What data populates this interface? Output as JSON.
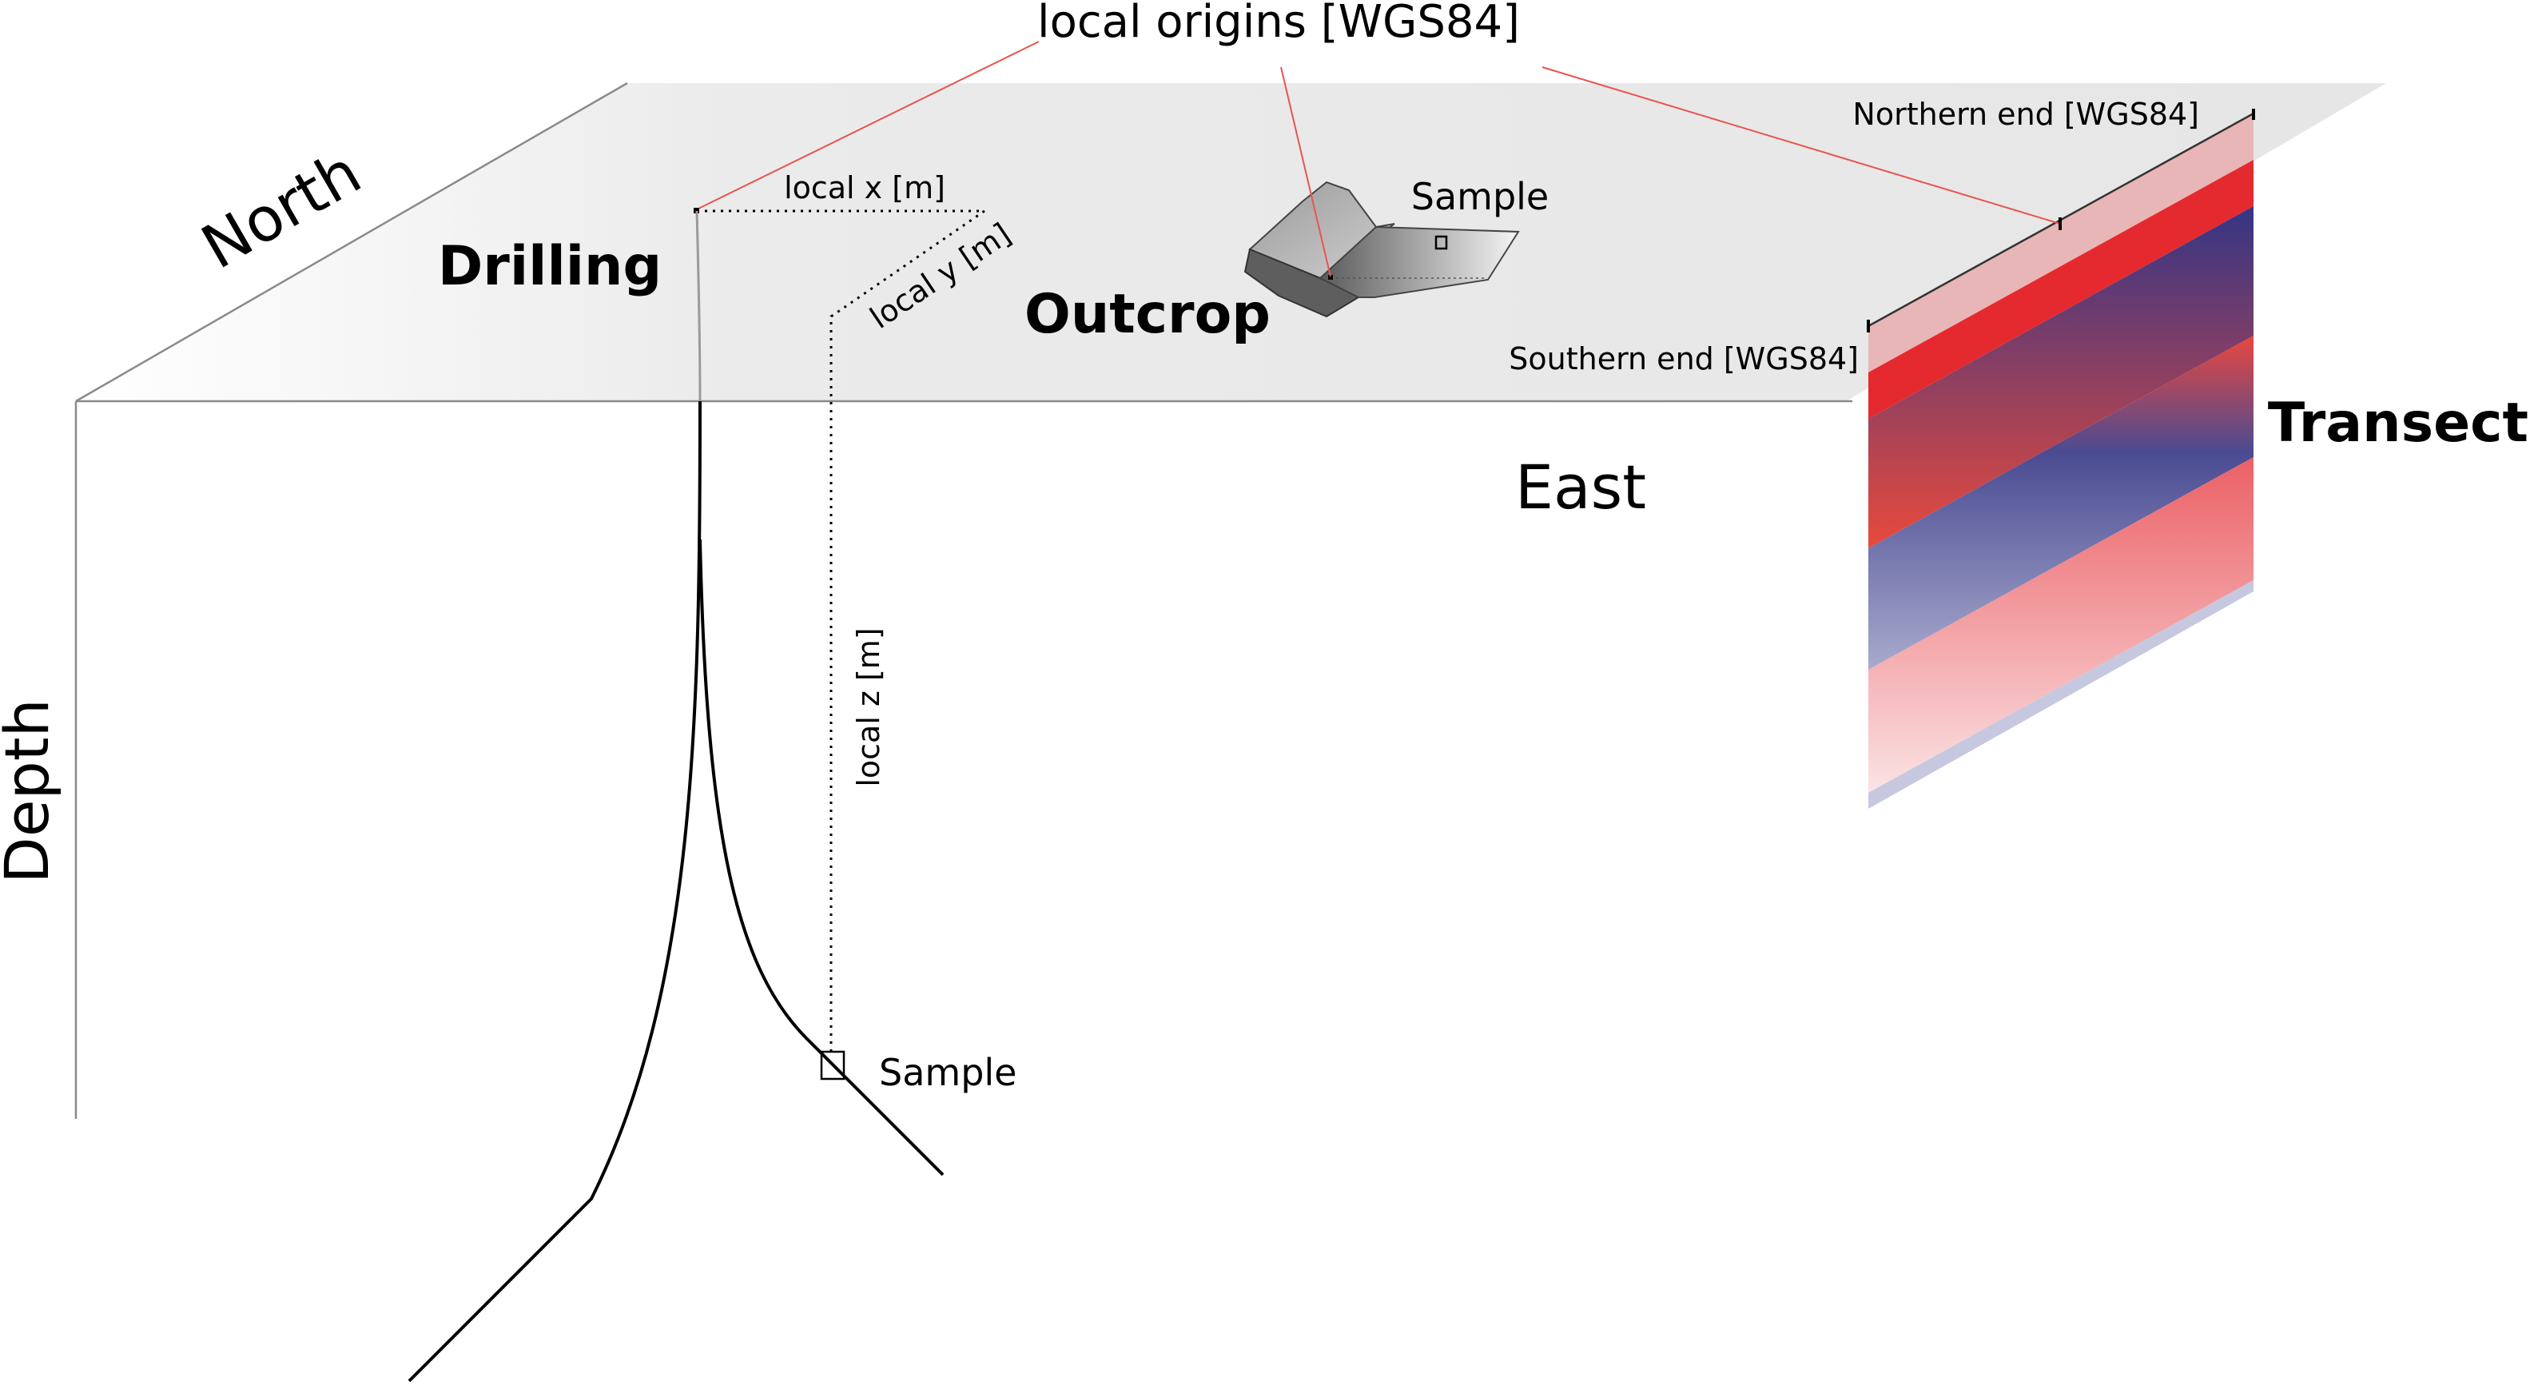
{
  "labels": {
    "local_origins": "local origins [WGS84]",
    "north": "North",
    "east": "East",
    "depth": "Depth",
    "drilling": "Drilling",
    "outcrop": "Outcrop",
    "transect": "Transect",
    "sample_outcrop": "Sample",
    "sample_drilling": "Sample",
    "local_x": "local x [m]",
    "local_y": "local y [m]",
    "local_z": "local z [m]",
    "northern_end": "Northern end [WGS84]",
    "southern_end": "Southern end [WGS84]"
  },
  "colors": {
    "surface_plane": "#ebebeb",
    "leader_lines": "#e8554f",
    "transect_red": "#e52a2f",
    "transect_blue": "#343585",
    "transect_pink": "#ec6f74",
    "transect_pale_blue": "#c6c8e0"
  }
}
